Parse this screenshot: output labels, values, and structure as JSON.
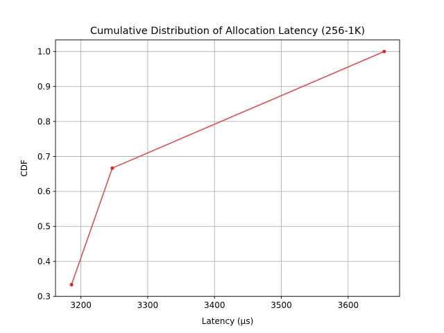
{
  "chart_data": {
    "type": "line",
    "title": "Cumulative Distribution of Allocation Latency (256-1K)",
    "xlabel": "Latency (µs)",
    "ylabel": "CDF",
    "xlim": [
      3162,
      3677
    ],
    "ylim": [
      0.3,
      1.033
    ],
    "x_ticks": [
      3200,
      3300,
      3400,
      3500,
      3600
    ],
    "y_ticks": [
      0.3,
      0.4,
      0.5,
      0.6,
      0.7,
      0.8,
      0.9,
      1.0
    ],
    "x_tick_labels": [
      "3200",
      "3300",
      "3400",
      "3500",
      "3600"
    ],
    "y_tick_labels": [
      "0.3",
      "0.4",
      "0.5",
      "0.6",
      "0.7",
      "0.8",
      "0.9",
      "1.0"
    ],
    "grid": true,
    "series": [
      {
        "color": "#d62728",
        "line_color": "#d94f4f",
        "marker": "dot",
        "x": [
          3186,
          3247,
          3654
        ],
        "y": [
          0.3333,
          0.6667,
          1.0
        ]
      }
    ]
  }
}
